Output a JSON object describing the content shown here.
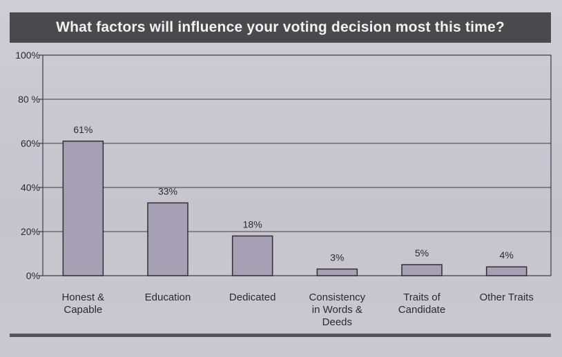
{
  "chart_data": {
    "type": "bar",
    "title": "What factors will influence your voting decision most this time?",
    "categories": [
      [
        "Honest &",
        "Capable"
      ],
      [
        "Education"
      ],
      [
        "Dedicated"
      ],
      [
        "Consistency",
        "in Words &",
        "Deeds"
      ],
      [
        "Traits of",
        "Candidate"
      ],
      [
        "Other Traits"
      ]
    ],
    "values": [
      61,
      33,
      18,
      3,
      5,
      4
    ],
    "value_labels": [
      "61%",
      "33%",
      "18%",
      "3%",
      "5%",
      "4%"
    ],
    "ylim": [
      0,
      100
    ],
    "yticks": [
      0,
      20,
      40,
      60,
      80,
      100
    ],
    "ytick_labels": [
      "0%",
      "20%",
      "40%",
      "60%",
      "80 %",
      "100%"
    ],
    "grid": true,
    "bar_color": "#a79fb3",
    "xlabel": "",
    "ylabel": ""
  }
}
